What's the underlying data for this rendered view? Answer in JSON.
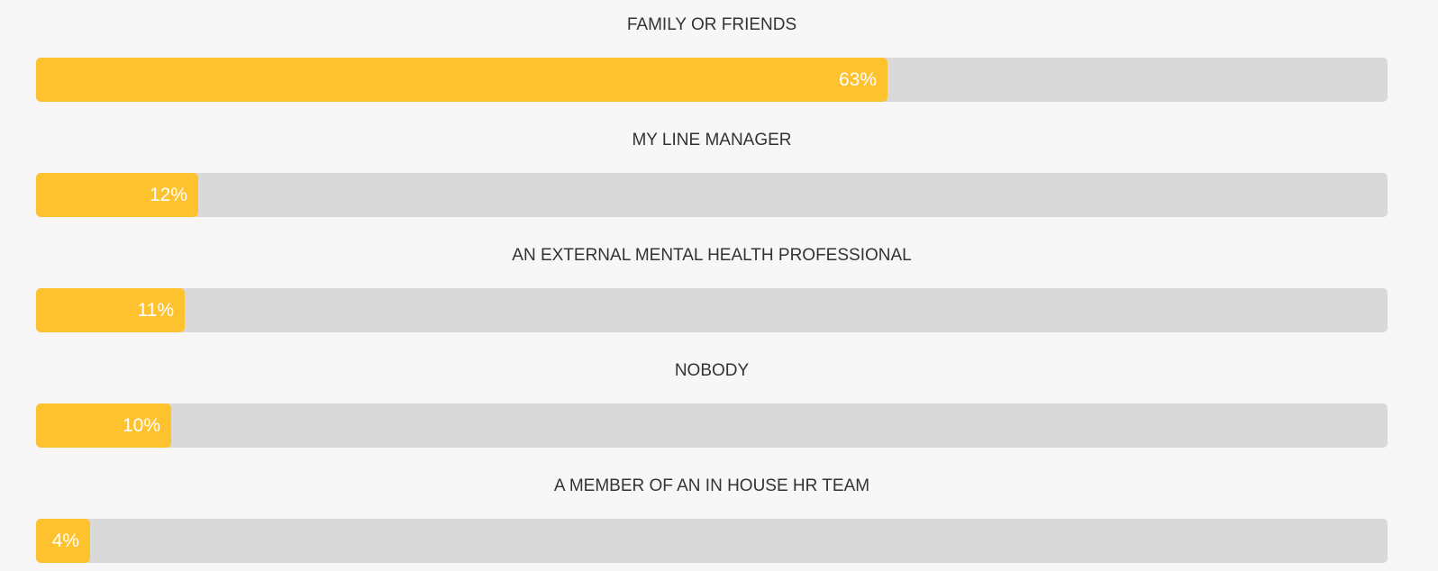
{
  "chart_data": {
    "type": "bar",
    "orientation": "horizontal",
    "categories": [
      "FAMILY OR FRIENDS",
      "MY LINE MANAGER",
      "AN EXTERNAL MENTAL HEALTH PROFESSIONAL",
      "NOBODY",
      "A MEMBER OF AN IN HOUSE HR TEAM"
    ],
    "values": [
      63,
      12,
      11,
      10,
      4
    ],
    "value_labels": [
      "63%",
      "12%",
      "11%",
      "10%",
      "4%"
    ],
    "xlim": [
      0,
      100
    ],
    "colors": {
      "bar": "#ffc22f",
      "track": "#d9d9d9",
      "label": "#333333",
      "value_text": "#ffffff",
      "background": "#f7f7f7"
    },
    "grid": false
  }
}
